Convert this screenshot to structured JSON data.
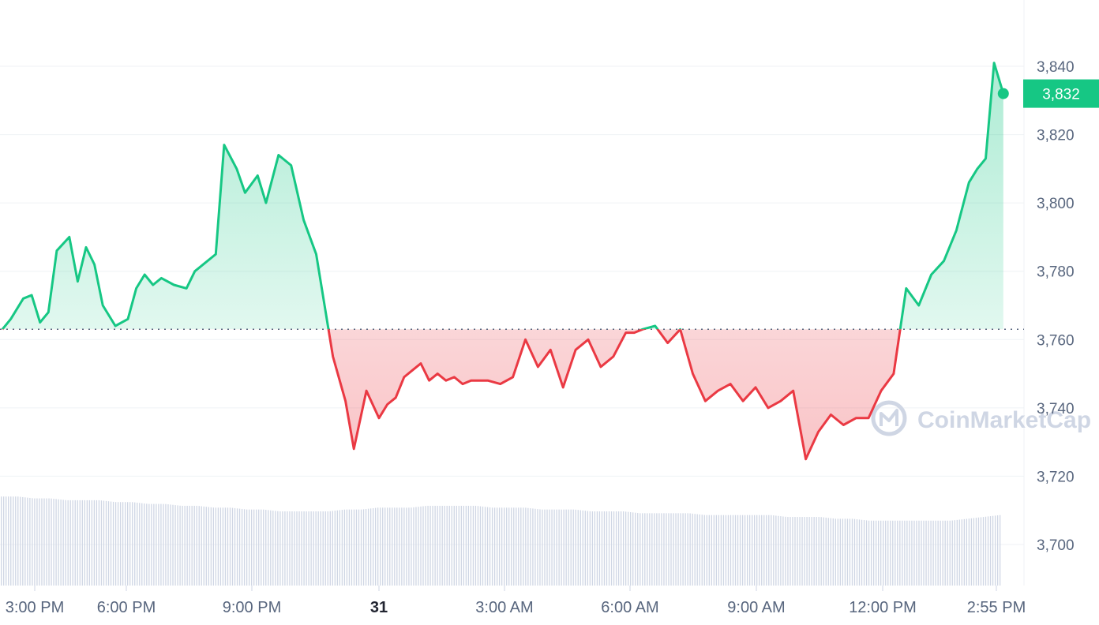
{
  "chart_data": {
    "type": "area",
    "y_axis": {
      "ticks": [
        "3,700",
        "3,720",
        "3,740",
        "3,760",
        "3,780",
        "3,800",
        "3,820",
        "3,840"
      ],
      "range": [
        3688,
        3855
      ],
      "side": "right"
    },
    "x_axis": {
      "ticks": [
        "3:00 PM",
        "6:00 PM",
        "9:00 PM",
        "31",
        "3:00 AM",
        "6:00 AM",
        "9:00 AM",
        "12:00 PM",
        "2:55 PM"
      ],
      "bold_tick": "31"
    },
    "baseline": 3763,
    "last_price_label": "3,832",
    "colors": {
      "up": "#16c784",
      "down": "#ea3943",
      "grid": "#eff2f5",
      "volume": "#cfd6e4",
      "badge": "#16c784"
    },
    "watermark": "CoinMarketCap",
    "grid": true,
    "series": [
      {
        "x_hours": [
          0,
          0.2,
          0.5,
          0.7,
          0.9,
          1.1,
          1.3,
          1.6,
          1.8,
          2.0,
          2.2,
          2.4,
          2.7,
          3.0,
          3.2,
          3.4,
          3.6,
          3.8,
          4.1,
          4.4,
          4.6,
          4.8,
          5.1,
          5.3,
          5.6,
          5.8,
          6.1,
          6.3,
          6.6,
          6.9,
          7.2,
          7.5,
          7.7,
          7.9,
          8.2,
          8.4,
          8.7,
          9.0,
          9.2,
          9.4,
          9.6,
          9.8,
          10.0,
          10.2,
          10.4,
          10.6,
          10.8,
          11.0,
          11.2,
          11.4,
          11.6,
          11.9,
          12.2,
          12.5,
          12.8,
          13.1,
          13.4,
          13.7,
          14.0,
          14.3,
          14.6,
          14.9,
          15.1,
          15.3,
          15.6,
          15.9,
          16.2,
          16.5,
          16.8,
          17.1,
          17.4,
          17.7,
          18.0,
          18.3,
          18.6,
          18.9,
          19.2,
          19.5,
          19.8,
          20.1,
          20.4,
          20.7,
          21.0,
          21.3,
          21.6,
          21.9,
          22.2,
          22.5,
          22.8,
          23.1,
          23.3,
          23.5,
          23.7,
          23.92
        ],
        "y": [
          3763,
          3766,
          3772,
          3773,
          3765,
          3768,
          3786,
          3790,
          3777,
          3787,
          3782,
          3770,
          3764,
          3766,
          3775,
          3779,
          3776,
          3778,
          3776,
          3775,
          3780,
          3782,
          3785,
          3817,
          3810,
          3803,
          3808,
          3800,
          3814,
          3811,
          3795,
          3785,
          3770,
          3755,
          3742,
          3728,
          3745,
          3737,
          3741,
          3743,
          3749,
          3751,
          3753,
          3748,
          3750,
          3748,
          3749,
          3747,
          3748,
          3748,
          3748,
          3747,
          3749,
          3760,
          3752,
          3757,
          3746,
          3757,
          3760,
          3752,
          3755,
          3762,
          3762,
          3763,
          3764,
          3759,
          3763,
          3750,
          3742,
          3745,
          3747,
          3742,
          3746,
          3740,
          3742,
          3745,
          3725,
          3733,
          3738,
          3735,
          3737,
          3737,
          3745,
          3750,
          3775,
          3770,
          3779,
          3783,
          3792,
          3806,
          3810,
          3813,
          3841,
          3832
        ]
      }
    ],
    "volume": [
      48,
      48,
      47,
      47,
      46,
      46,
      46,
      45,
      45,
      44,
      44,
      43,
      43,
      42,
      42,
      41,
      41,
      40,
      40,
      40,
      40,
      41,
      41,
      42,
      42,
      42,
      43,
      43,
      43,
      43,
      42,
      42,
      42,
      41,
      41,
      41,
      40,
      40,
      40,
      39,
      39,
      39,
      39,
      38,
      38,
      38,
      38,
      38,
      37,
      37,
      37,
      36,
      36,
      35,
      35,
      35,
      35,
      35,
      35,
      36,
      37,
      38
    ]
  }
}
